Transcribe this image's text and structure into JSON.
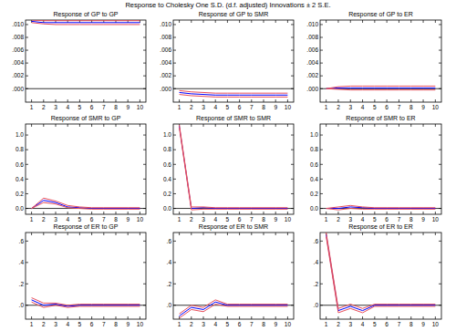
{
  "title": "Response to Cholesky One S.D. (d.f. adjusted) Innovations ± 2 S.E.",
  "chart_data": [
    {
      "type": "line",
      "title": "Response of GP to GP",
      "x": [
        1,
        2,
        3,
        4,
        5,
        6,
        7,
        8,
        9,
        10
      ],
      "xlim": [
        0.5,
        10.5
      ],
      "xticks": [
        1,
        2,
        3,
        4,
        5,
        6,
        7,
        8,
        9,
        10
      ],
      "ylim": [
        -0.0021,
        0.0107
      ],
      "yticks": [
        {
          "value": 0,
          "label": ".000"
        },
        {
          "value": 0.002,
          "label": ".002"
        },
        {
          "value": 0.004,
          "label": ".004"
        },
        {
          "value": 0.006,
          "label": ".006"
        },
        {
          "value": 0.008,
          "label": ".008"
        },
        {
          "value": 0.01,
          "label": ".010"
        }
      ],
      "series": [
        {
          "color": "#0000ff",
          "line_style": "solid",
          "values": [
            0.0105,
            0.0103,
            0.0103,
            0.0103,
            0.0103,
            0.0103,
            0.0103,
            0.0103,
            0.0103,
            0.0103
          ]
        },
        {
          "color": "#e8505b",
          "line_style": "solid",
          "values": [
            0.0107,
            0.0106,
            0.0106,
            0.0106,
            0.0106,
            0.0106,
            0.0106,
            0.0106,
            0.0106,
            0.0106
          ]
        },
        {
          "color": "#e8505b",
          "line_style": "solid",
          "values": [
            0.0103,
            0.0101,
            0.01,
            0.01,
            0.01,
            0.01,
            0.01,
            0.01,
            0.01,
            0.01
          ]
        }
      ]
    },
    {
      "type": "line",
      "title": "Response of GP to SMR",
      "x": [
        1,
        2,
        3,
        4,
        5,
        6,
        7,
        8,
        9,
        10
      ],
      "xlim": [
        0.5,
        10.5
      ],
      "xticks": [
        1,
        2,
        3,
        4,
        5,
        6,
        7,
        8,
        9,
        10
      ],
      "ylim": [
        -0.0021,
        0.0107
      ],
      "yticks": [
        {
          "value": 0,
          "label": ".000"
        },
        {
          "value": 0.002,
          "label": ".002"
        },
        {
          "value": 0.004,
          "label": ".004"
        },
        {
          "value": 0.006,
          "label": ".006"
        },
        {
          "value": 0.008,
          "label": ".008"
        },
        {
          "value": 0.01,
          "label": ".010"
        }
      ],
      "series": [
        {
          "color": "#0000ff",
          "line_style": "solid",
          "values": [
            -0.0006,
            -0.0008,
            -0.0009,
            -0.001,
            -0.001,
            -0.001,
            -0.001,
            -0.001,
            -0.001,
            -0.001
          ]
        },
        {
          "color": "#e8505b",
          "line_style": "solid",
          "values": [
            -0.0003,
            -0.0005,
            -0.0006,
            -0.0007,
            -0.0007,
            -0.0007,
            -0.0007,
            -0.0007,
            -0.0007,
            -0.0007
          ]
        },
        {
          "color": "#e8505b",
          "line_style": "solid",
          "values": [
            -0.0009,
            -0.0011,
            -0.0012,
            -0.0013,
            -0.0013,
            -0.0013,
            -0.0013,
            -0.0013,
            -0.0013,
            -0.0013
          ]
        }
      ]
    },
    {
      "type": "line",
      "title": "Response of GP to ER",
      "x": [
        1,
        2,
        3,
        4,
        5,
        6,
        7,
        8,
        9,
        10
      ],
      "xlim": [
        0.5,
        10.5
      ],
      "xticks": [
        1,
        2,
        3,
        4,
        5,
        6,
        7,
        8,
        9,
        10
      ],
      "ylim": [
        -0.0021,
        0.0107
      ],
      "yticks": [
        {
          "value": 0,
          "label": ".000"
        },
        {
          "value": 0.002,
          "label": ".002"
        },
        {
          "value": 0.004,
          "label": ".004"
        },
        {
          "value": 0.006,
          "label": ".006"
        },
        {
          "value": 0.008,
          "label": ".008"
        },
        {
          "value": 0.01,
          "label": ".010"
        }
      ],
      "series": [
        {
          "color": "#0000ff",
          "line_style": "solid",
          "values": [
            0,
            0.0001,
            0.0001,
            0.0001,
            0.0001,
            0.0001,
            0.0001,
            0.0001,
            0.0001,
            0.0001
          ]
        },
        {
          "color": "#e8505b",
          "line_style": "solid",
          "values": [
            0,
            0.0003,
            0.0004,
            0.0004,
            0.0004,
            0.0004,
            0.0004,
            0.0004,
            0.0004,
            0.0004
          ]
        },
        {
          "color": "#e8505b",
          "line_style": "solid",
          "values": [
            0,
            -0.0001,
            -0.0002,
            -0.0002,
            -0.0002,
            -0.0002,
            -0.0002,
            -0.0002,
            -0.0002,
            -0.0002
          ]
        }
      ]
    },
    {
      "type": "line",
      "title": "Response of SMR to GP",
      "x": [
        1,
        2,
        3,
        4,
        5,
        6,
        7,
        8,
        9,
        10
      ],
      "xlim": [
        0.5,
        10.5
      ],
      "xticks": [
        1,
        2,
        3,
        4,
        5,
        6,
        7,
        8,
        9,
        10
      ],
      "ylim": [
        -0.08,
        1.15
      ],
      "yticks": [
        {
          "value": 0,
          "label": "0.0"
        },
        0.2,
        0.4,
        0.6,
        0.8,
        {
          "value": 1,
          "label": "1.0"
        }
      ],
      "series": [
        {
          "color": "#0000ff",
          "line_style": "solid",
          "values": [
            0,
            0.11,
            0.08,
            0.02,
            0.01,
            0,
            0,
            0,
            0,
            0
          ]
        },
        {
          "color": "#e8505b",
          "line_style": "solid",
          "values": [
            0,
            0.14,
            0.1,
            0.04,
            0.02,
            0.01,
            0.01,
            0.01,
            0.01,
            0.01
          ]
        },
        {
          "color": "#e8505b",
          "line_style": "solid",
          "values": [
            0,
            0.08,
            0.06,
            0.01,
            0,
            -0.01,
            -0.01,
            -0.01,
            -0.01,
            -0.01
          ]
        }
      ]
    },
    {
      "type": "line",
      "title": "Response of SMR to SMR",
      "x": [
        1,
        2,
        3,
        4,
        5,
        6,
        7,
        8,
        9,
        10
      ],
      "xlim": [
        0.5,
        10.5
      ],
      "xticks": [
        1,
        2,
        3,
        4,
        5,
        6,
        7,
        8,
        9,
        10
      ],
      "ylim": [
        -0.08,
        1.15
      ],
      "yticks": [
        {
          "value": 0,
          "label": "0.0"
        },
        0.2,
        0.4,
        0.6,
        0.8,
        {
          "value": 1,
          "label": "1.0"
        }
      ],
      "series": [
        {
          "color": "#0000ff",
          "line_style": "solid",
          "values": [
            1.12,
            0,
            0.01,
            0,
            0,
            0,
            0,
            0,
            0,
            0
          ]
        },
        {
          "color": "#e8505b",
          "line_style": "solid",
          "values": [
            1.14,
            0.02,
            0.02,
            0.01,
            0.01,
            0.01,
            0.01,
            0.01,
            0.01,
            0.01
          ]
        },
        {
          "color": "#e8505b",
          "line_style": "solid",
          "values": [
            1.1,
            -0.02,
            -0.01,
            -0.01,
            -0.01,
            -0.01,
            -0.01,
            -0.01,
            -0.01,
            -0.01
          ]
        }
      ]
    },
    {
      "type": "line",
      "title": "Response of SMR to ER",
      "x": [
        1,
        2,
        3,
        4,
        5,
        6,
        7,
        8,
        9,
        10
      ],
      "xlim": [
        0.5,
        10.5
      ],
      "xticks": [
        1,
        2,
        3,
        4,
        5,
        6,
        7,
        8,
        9,
        10
      ],
      "ylim": [
        -0.08,
        1.15
      ],
      "yticks": [
        {
          "value": 0,
          "label": "0.0"
        },
        0.2,
        0.4,
        0.6,
        0.8,
        {
          "value": 1,
          "label": "1.0"
        }
      ],
      "series": [
        {
          "color": "#0000ff",
          "line_style": "solid",
          "values": [
            0,
            0,
            0.02,
            0.01,
            0,
            0,
            0,
            0,
            0,
            0
          ]
        },
        {
          "color": "#e8505b",
          "line_style": "solid",
          "values": [
            0,
            0.02,
            0.04,
            0.02,
            0.01,
            0.01,
            0.01,
            0.01,
            0.01,
            0.01
          ]
        },
        {
          "color": "#e8505b",
          "line_style": "solid",
          "values": [
            0,
            -0.02,
            0,
            -0.01,
            -0.01,
            -0.01,
            -0.01,
            -0.01,
            -0.01,
            -0.01
          ]
        }
      ]
    },
    {
      "type": "line",
      "title": "Response of ER to GP",
      "x": [
        1,
        2,
        3,
        4,
        5,
        6,
        7,
        8,
        9,
        10
      ],
      "xlim": [
        0.5,
        10.5
      ],
      "xticks": [
        1,
        2,
        3,
        4,
        5,
        6,
        7,
        8,
        9,
        10
      ],
      "ylim": [
        -0.13,
        0.68
      ],
      "yticks": [
        {
          "value": 0,
          "label": ".0"
        },
        {
          "value": 0.2,
          "label": ".2"
        },
        {
          "value": 0.4,
          "label": ".4"
        },
        {
          "value": 0.6,
          "label": ".6"
        }
      ],
      "series": [
        {
          "color": "#0000ff",
          "line_style": "solid",
          "values": [
            0.05,
            0,
            0.01,
            -0.01,
            0,
            0,
            0,
            0,
            0,
            0
          ]
        },
        {
          "color": "#e8505b",
          "line_style": "solid",
          "values": [
            0.07,
            0.02,
            0.02,
            0,
            0.01,
            0.01,
            0.01,
            0.01,
            0.01,
            0.01
          ]
        },
        {
          "color": "#e8505b",
          "line_style": "solid",
          "values": [
            0.03,
            -0.02,
            0,
            -0.02,
            -0.01,
            -0.01,
            -0.01,
            -0.01,
            -0.01,
            -0.01
          ]
        }
      ]
    },
    {
      "type": "line",
      "title": "Response of ER to SMR",
      "x": [
        1,
        2,
        3,
        4,
        5,
        6,
        7,
        8,
        9,
        10
      ],
      "xlim": [
        0.5,
        10.5
      ],
      "xticks": [
        1,
        2,
        3,
        4,
        5,
        6,
        7,
        8,
        9,
        10
      ],
      "ylim": [
        -0.13,
        0.68
      ],
      "yticks": [
        {
          "value": 0,
          "label": ".0"
        },
        {
          "value": 0.2,
          "label": ".2"
        },
        {
          "value": 0.4,
          "label": ".4"
        },
        {
          "value": 0.6,
          "label": ".6"
        }
      ],
      "series": [
        {
          "color": "#0000ff",
          "line_style": "solid",
          "values": [
            -0.1,
            -0.02,
            -0.04,
            0.03,
            0,
            0,
            0,
            0,
            0,
            0
          ]
        },
        {
          "color": "#e8505b",
          "line_style": "solid",
          "values": [
            -0.08,
            0,
            -0.02,
            0.05,
            0.01,
            0.01,
            0.01,
            0.01,
            0.01,
            0.01
          ]
        },
        {
          "color": "#e8505b",
          "line_style": "solid",
          "values": [
            -0.12,
            -0.04,
            -0.06,
            0.01,
            -0.01,
            -0.01,
            -0.01,
            -0.01,
            -0.01,
            -0.01
          ]
        }
      ]
    },
    {
      "type": "line",
      "title": "Response of ER to ER",
      "x": [
        1,
        2,
        3,
        4,
        5,
        6,
        7,
        8,
        9,
        10
      ],
      "xlim": [
        0.5,
        10.5
      ],
      "xticks": [
        1,
        2,
        3,
        4,
        5,
        6,
        7,
        8,
        9,
        10
      ],
      "ylim": [
        -0.13,
        0.68
      ],
      "yticks": [
        {
          "value": 0,
          "label": ".0"
        },
        {
          "value": 0.2,
          "label": ".2"
        },
        {
          "value": 0.4,
          "label": ".4"
        },
        {
          "value": 0.6,
          "label": ".6"
        }
      ],
      "series": [
        {
          "color": "#0000ff",
          "line_style": "solid",
          "values": [
            0.66,
            -0.05,
            -0.01,
            -0.05,
            0,
            0,
            0,
            0,
            0,
            0
          ]
        },
        {
          "color": "#e8505b",
          "line_style": "solid",
          "values": [
            0.68,
            -0.03,
            0.01,
            -0.03,
            0.01,
            0.01,
            0.01,
            0.01,
            0.01,
            0.01
          ]
        },
        {
          "color": "#e8505b",
          "line_style": "solid",
          "values": [
            0.64,
            -0.07,
            -0.03,
            -0.07,
            -0.01,
            -0.01,
            -0.01,
            -0.01,
            -0.01,
            -0.01
          ]
        }
      ]
    }
  ]
}
